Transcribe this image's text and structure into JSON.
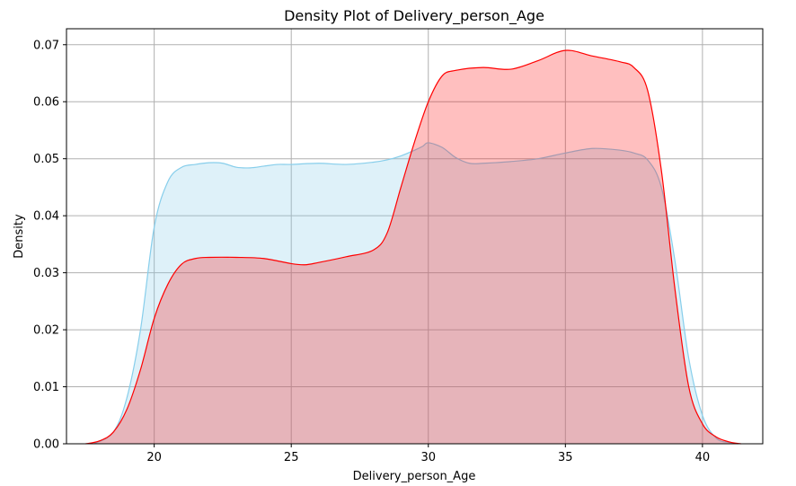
{
  "chart_data": {
    "type": "area",
    "title": "Density Plot of Delivery_person_Age",
    "xlabel": "Delivery_person_Age",
    "ylabel": "Density",
    "xlim": [
      16.8,
      42.2
    ],
    "ylim": [
      0.0,
      0.0728
    ],
    "xticks": [
      20,
      25,
      30,
      35,
      40
    ],
    "yticks": [
      0.0,
      0.01,
      0.02,
      0.03,
      0.04,
      0.05,
      0.06,
      0.07
    ],
    "ytick_labels": [
      "0.00",
      "0.01",
      "0.02",
      "0.03",
      "0.04",
      "0.05",
      "0.06",
      "0.07"
    ],
    "grid": true,
    "legend": "none",
    "series": [
      {
        "color": "#87ceeb",
        "fill": "#87ceeb",
        "fill_opacity": 0.28,
        "x": [
          17.8,
          18.5,
          19.0,
          19.5,
          20.0,
          20.5,
          21.0,
          21.5,
          22.0,
          22.5,
          23.0,
          23.5,
          24.0,
          24.5,
          25.0,
          26.0,
          27.0,
          28.0,
          28.5,
          29.0,
          29.5,
          29.8,
          30.0,
          30.5,
          31.0,
          31.5,
          32.0,
          33.0,
          34.0,
          35.0,
          36.0,
          37.0,
          37.5,
          38.0,
          38.5,
          39.0,
          39.5,
          40.0,
          40.5,
          41.0,
          41.3
        ],
        "y": [
          0.0,
          0.002,
          0.008,
          0.02,
          0.038,
          0.046,
          0.0485,
          0.049,
          0.0493,
          0.0492,
          0.0485,
          0.0484,
          0.0487,
          0.049,
          0.049,
          0.0492,
          0.049,
          0.0494,
          0.0498,
          0.0505,
          0.0515,
          0.0522,
          0.0528,
          0.052,
          0.0502,
          0.0492,
          0.0492,
          0.0495,
          0.05,
          0.051,
          0.0518,
          0.0515,
          0.051,
          0.0498,
          0.045,
          0.032,
          0.015,
          0.005,
          0.001,
          0.0002,
          0.0
        ]
      },
      {
        "color": "#ff0000",
        "fill": "#ff0000",
        "fill_opacity": 0.25,
        "x": [
          17.5,
          18.0,
          18.5,
          19.0,
          19.5,
          20.0,
          20.5,
          21.0,
          21.5,
          22.0,
          23.0,
          24.0,
          25.0,
          25.5,
          26.0,
          27.0,
          28.0,
          28.5,
          29.0,
          29.5,
          30.0,
          30.5,
          31.0,
          32.0,
          33.0,
          34.0,
          35.0,
          36.0,
          37.0,
          37.5,
          38.0,
          38.5,
          39.0,
          39.5,
          40.0,
          40.5,
          41.0,
          41.4
        ],
        "y": [
          0.0,
          0.0005,
          0.002,
          0.006,
          0.013,
          0.022,
          0.028,
          0.0315,
          0.0325,
          0.0327,
          0.0327,
          0.0325,
          0.0316,
          0.0314,
          0.0318,
          0.0328,
          0.034,
          0.037,
          0.045,
          0.053,
          0.06,
          0.0645,
          0.0655,
          0.066,
          0.0657,
          0.0672,
          0.069,
          0.068,
          0.067,
          0.066,
          0.062,
          0.048,
          0.027,
          0.01,
          0.0035,
          0.0012,
          0.0003,
          0.0
        ]
      }
    ]
  }
}
